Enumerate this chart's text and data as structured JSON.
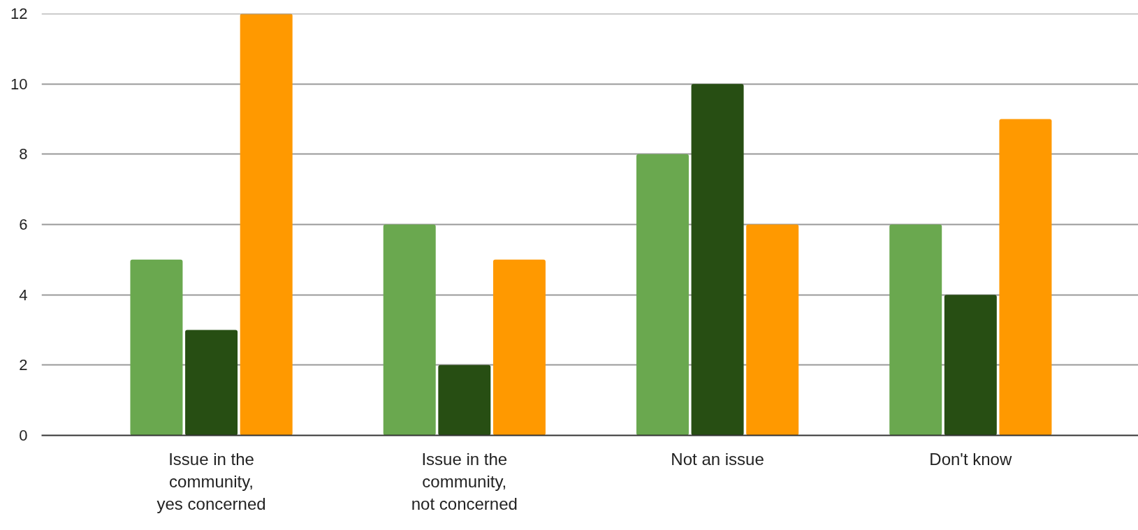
{
  "chart_data": {
    "type": "bar",
    "categories": [
      "Issue in the community, yes concerned",
      "Issue in the community, not concerned",
      "Not an issue",
      "Don't know"
    ],
    "series": [
      {
        "color": "#6aa84f",
        "values": [
          5,
          6,
          8,
          6
        ]
      },
      {
        "color": "#274e13",
        "values": [
          3,
          2,
          10,
          4
        ]
      },
      {
        "color": "#ff9900",
        "values": [
          12,
          5,
          6,
          9
        ]
      }
    ],
    "ylim": [
      0,
      12
    ],
    "yticks": [
      0,
      2,
      4,
      6,
      8,
      10,
      12
    ],
    "grid": "y"
  }
}
